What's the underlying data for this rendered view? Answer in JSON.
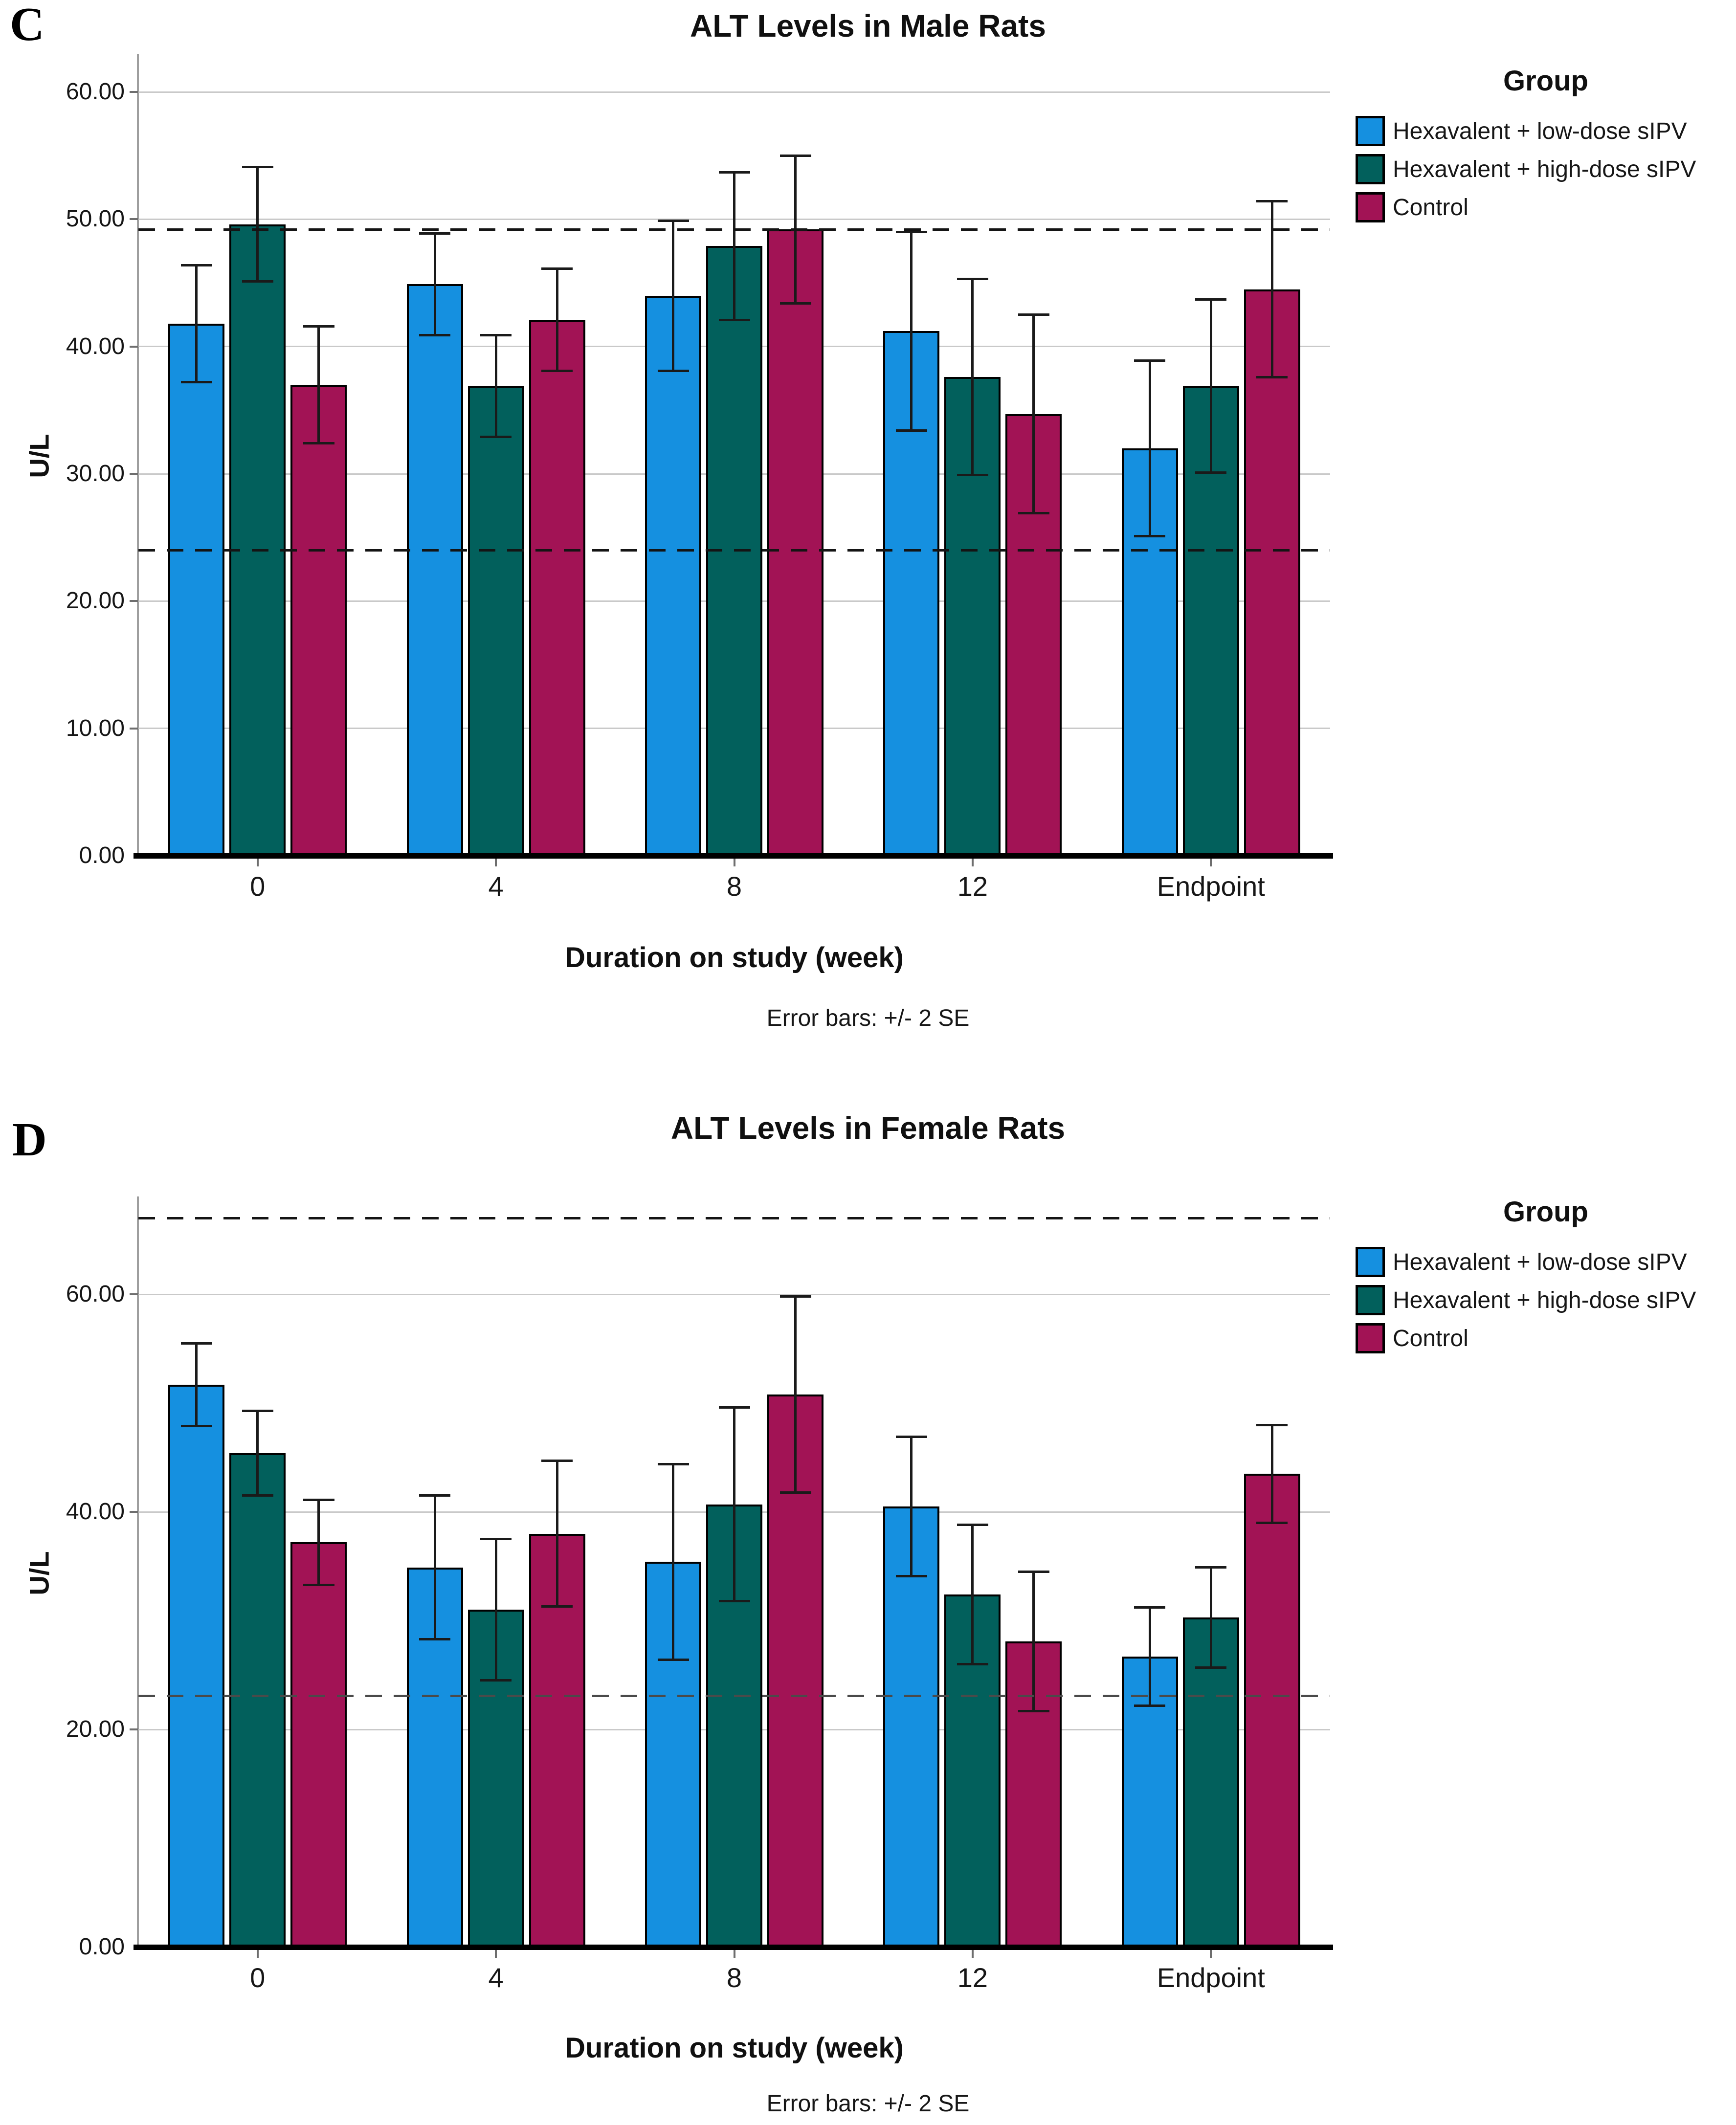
{
  "page": {
    "background": "#ffffff"
  },
  "panels": [
    {
      "letter": "C"
    },
    {
      "letter": "D"
    }
  ],
  "chart_data": [
    {
      "type": "bar",
      "title": "ALT Levels in Male Rats",
      "xlabel": "Duration on study (week)",
      "ylabel": "U/L",
      "footnote": "Error bars: +/- 2 SE",
      "legend_title": "Group",
      "legend_position": "right",
      "grid": true,
      "categories": [
        "0",
        "4",
        "8",
        "12",
        "Endpoint"
      ],
      "series": [
        {
          "name": "Hexavalent + low-dose sIPV",
          "color": "#1590E0",
          "values": [
            41.8,
            44.9,
            44.0,
            41.2,
            32.0
          ],
          "se2": [
            4.6,
            4.0,
            5.9,
            7.8,
            6.9
          ]
        },
        {
          "name": "Hexavalent + high-dose sIPV",
          "color": "#02605C",
          "values": [
            49.6,
            36.9,
            47.9,
            37.6,
            36.9
          ],
          "se2": [
            4.5,
            4.0,
            5.8,
            7.7,
            6.8
          ]
        },
        {
          "name": "Control",
          "color": "#A21355",
          "values": [
            37.0,
            42.1,
            49.2,
            34.7,
            44.5
          ],
          "se2": [
            4.6,
            4.0,
            5.8,
            7.8,
            6.9
          ]
        }
      ],
      "reference_lines": [
        {
          "value": 49.2,
          "color": "#141414"
        },
        {
          "value": 24.0,
          "color": "#141414"
        }
      ],
      "yticks": [
        {
          "v": 0,
          "label": "0.00"
        },
        {
          "v": 10,
          "label": "10.00"
        },
        {
          "v": 20,
          "label": "20.00"
        },
        {
          "v": 30,
          "label": "30.00"
        },
        {
          "v": 40,
          "label": "40.00"
        },
        {
          "v": 50,
          "label": "50.00"
        },
        {
          "v": 60,
          "label": "60.00"
        }
      ],
      "ylim": [
        0,
        63
      ]
    },
    {
      "type": "bar",
      "title": "ALT Levels in Female Rats",
      "xlabel": "Duration on study (week)",
      "ylabel": "U/L",
      "footnote": "Error bars: +/- 2 SE",
      "legend_title": "Group",
      "legend_position": "right",
      "grid": true,
      "categories": [
        "0",
        "4",
        "8",
        "12",
        "Endpoint"
      ],
      "series": [
        {
          "name": "Hexavalent + low-dose sIPV",
          "color": "#1590E0",
          "values": [
            51.7,
            34.9,
            35.4,
            40.5,
            26.7
          ],
          "se2": [
            3.8,
            6.6,
            9.0,
            6.4,
            4.5
          ]
        },
        {
          "name": "Hexavalent + high-dose sIPV",
          "color": "#02605C",
          "values": [
            45.4,
            31.0,
            40.7,
            32.4,
            30.3
          ],
          "se2": [
            3.9,
            6.5,
            8.9,
            6.4,
            4.6
          ]
        },
        {
          "name": "Control",
          "color": "#A21355",
          "values": [
            37.2,
            38.0,
            50.8,
            28.1,
            43.5
          ],
          "se2": [
            3.9,
            6.7,
            9.0,
            6.4,
            4.5
          ]
        }
      ],
      "reference_lines": [
        {
          "value": 67.0,
          "color": "#141414"
        },
        {
          "value": 23.1,
          "color": "#4a4a4a"
        }
      ],
      "yticks": [
        {
          "v": 0,
          "label": "0.00"
        },
        {
          "v": 20,
          "label": "20.00"
        },
        {
          "v": 40,
          "label": "40.00"
        },
        {
          "v": 60,
          "label": "60.00"
        }
      ],
      "ylim": [
        0,
        69
      ]
    }
  ]
}
